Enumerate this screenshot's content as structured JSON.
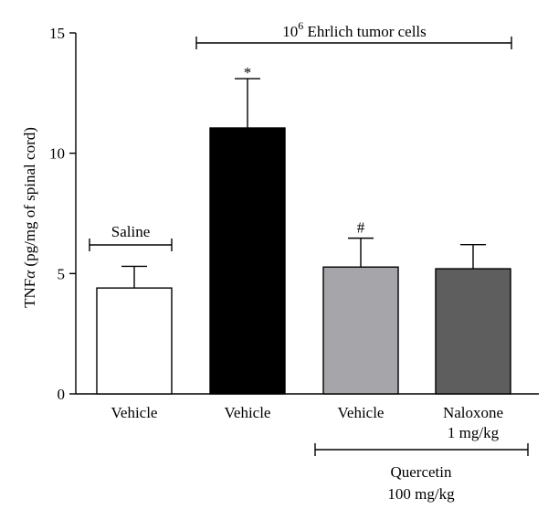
{
  "chart_data": {
    "type": "bar",
    "ylabel_main": "TNF",
    "ylabel_alpha": "α",
    "ylabel_rest": " (pg/mg of spinal cord)",
    "ylim": [
      0,
      15
    ],
    "yticks": [
      "0",
      "5",
      "10",
      "15"
    ],
    "grid": false,
    "categories": [
      {
        "label": "Vehicle",
        "label2": ""
      },
      {
        "label": "Vehicle",
        "label2": ""
      },
      {
        "label": "Vehicle",
        "label2": ""
      },
      {
        "label": "Naloxone",
        "label2": "1 mg/kg"
      }
    ],
    "values": [
      4.4,
      11.05,
      5.27,
      5.2
    ],
    "errors": [
      0.9,
      2.05,
      1.2,
      1.0
    ],
    "colors": [
      "#ffffff",
      "#000000",
      "#a6a6aa",
      "#5e5e5e"
    ],
    "bar_annotations": [
      "",
      "*",
      "#",
      ""
    ],
    "groups": {
      "saline": "Saline",
      "tumor_prefix": "10",
      "tumor_exp": "6",
      "tumor_suffix": " Ehrlich tumor cells",
      "quercetin_line1": "Quercetin",
      "quercetin_line2": "100 mg/kg"
    }
  }
}
